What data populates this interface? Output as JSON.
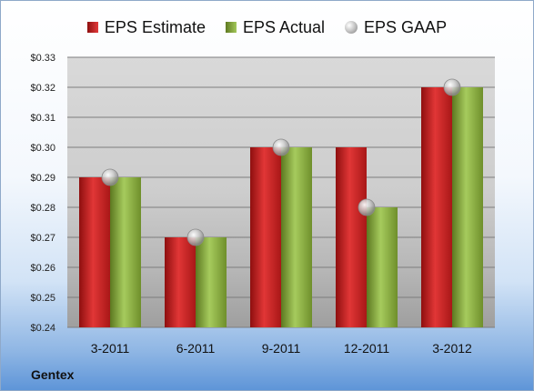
{
  "chart_data": {
    "type": "bar",
    "categories": [
      "3-2011",
      "6-2011",
      "9-2011",
      "12-2011",
      "3-2012"
    ],
    "series": [
      {
        "name": "EPS Estimate",
        "type": "bar",
        "values": [
          0.29,
          0.27,
          0.3,
          0.3,
          0.32
        ],
        "color": "#c81e1e"
      },
      {
        "name": "EPS Actual",
        "type": "bar",
        "values": [
          0.29,
          0.27,
          0.3,
          0.28,
          0.32
        ],
        "color": "#8db13e"
      },
      {
        "name": "EPS GAAP",
        "type": "scatter",
        "values": [
          0.29,
          0.27,
          0.3,
          0.28,
          0.32
        ],
        "color": "#b3b3b3"
      }
    ],
    "ylim": [
      0.24,
      0.33
    ],
    "yticks": [
      "$0.24",
      "$0.25",
      "$0.26",
      "$0.27",
      "$0.28",
      "$0.29",
      "$0.30",
      "$0.31",
      "$0.32",
      "$0.33"
    ],
    "grid": true,
    "legend_position": "top",
    "caption": "Gentex"
  }
}
